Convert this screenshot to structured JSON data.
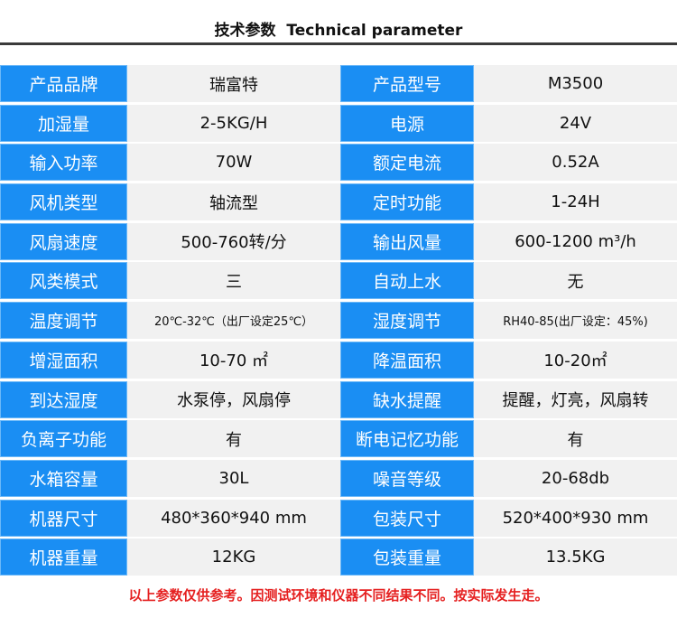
{
  "header": {
    "title": "技术参数  Technical parameter"
  },
  "rows": [
    {
      "l1": "产品品牌",
      "v1": "瑞富特",
      "l2": "产品型号",
      "v2": "M3500"
    },
    {
      "l1": "加湿量",
      "v1": "2-5KG/H",
      "l2": "电源",
      "v2": "24V"
    },
    {
      "l1": "输入功率",
      "v1": "70W",
      "l2": "额定电流",
      "v2": "0.52A"
    },
    {
      "l1": "风机类型",
      "v1": "轴流型",
      "l2": "定时功能",
      "v2": "1-24H"
    },
    {
      "l1": "风扇速度",
      "v1": "500-760转/分",
      "l2": "输出风量",
      "v2": "600-1200 m³/h"
    },
    {
      "l1": "风类模式",
      "v1": "三",
      "l2": "自动上水",
      "v2": "无"
    },
    {
      "l1": "温度调节",
      "v1": "20℃-32℃（出厂设定25℃）",
      "l2": "湿度调节",
      "v2": "RH40-85(出厂设定：45%)"
    },
    {
      "l1": "增湿面积",
      "v1": "10-70 ㎡",
      "l2": "降温面积",
      "v2": "10-20㎡"
    },
    {
      "l1": "到达湿度",
      "v1": "水泵停，风扇停",
      "l2": "缺水提醒",
      "v2": "提醒，灯亮，风扇转"
    },
    {
      "l1": "负离子功能",
      "v1": "有",
      "l2": "断电记忆功能",
      "v2": "有"
    },
    {
      "l1": "水箱容量",
      "v1": "30L",
      "l2": "噪音等级",
      "v2": "20-68db"
    },
    {
      "l1": "机器尺寸",
      "v1": "480*360*940 mm",
      "l2": "包装尺寸",
      "v2": "520*400*930 mm"
    },
    {
      "l1": "机器重量",
      "v1": "12KG",
      "l2": "包装重量",
      "v2": "13.5KG"
    }
  ],
  "footer": {
    "note": "以上参数仅供参考。因测试环境和仪器不同结果不同。按实际发生走。"
  }
}
